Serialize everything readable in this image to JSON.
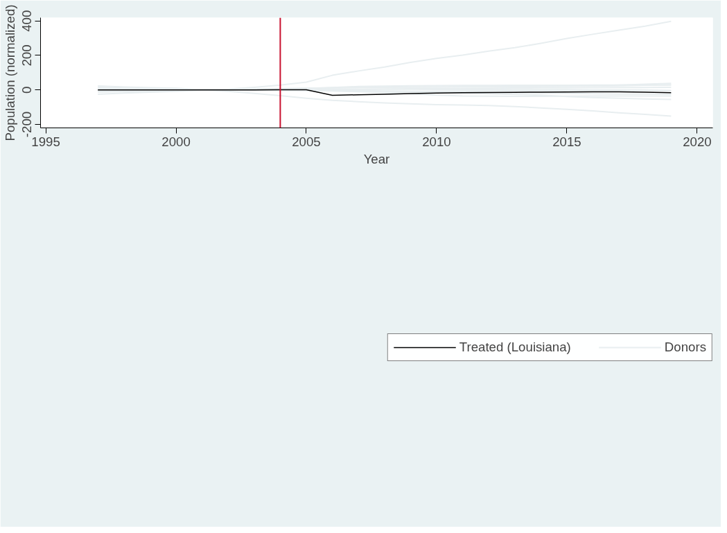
{
  "chart_data": {
    "type": "line",
    "xlabel": "Year",
    "ylabel": "Population (normalized)",
    "x": [
      1997,
      1998,
      1999,
      2000,
      2001,
      2002,
      2003,
      2004,
      2005,
      2006,
      2007,
      2008,
      2009,
      2010,
      2011,
      2012,
      2013,
      2014,
      2015,
      2016,
      2017,
      2018,
      2019
    ],
    "series": [
      {
        "name": "Treated (Louisiana)",
        "color": "#000000",
        "values": [
          0,
          0,
          0,
          0,
          0,
          0,
          0,
          1,
          1,
          -31,
          -28,
          -25,
          -21,
          -18,
          -16,
          -15,
          -14,
          -13,
          -12,
          -11,
          -11,
          -13,
          -16
        ]
      },
      {
        "name": "Donors",
        "color": "#e8eef0",
        "values": [
          5,
          4,
          3,
          1,
          0,
          5,
          15,
          28,
          45,
          85,
          110,
          133,
          160,
          183,
          202,
          225,
          245,
          270,
          298,
          323,
          347,
          370,
          398
        ]
      },
      {
        "color": "#e8eef0",
        "values": [
          -5,
          -4,
          -3,
          -2,
          0,
          -8,
          -20,
          -33,
          -48,
          -60,
          -68,
          -75,
          -80,
          -85,
          -87,
          -90,
          -96,
          -104,
          -112,
          -122,
          -133,
          -142,
          -152
        ]
      },
      {
        "color": "#e8eef0",
        "values": [
          23,
          17,
          13,
          10,
          2,
          3,
          6,
          8,
          10,
          12,
          14,
          15,
          16,
          17,
          18,
          19,
          20,
          21,
          22,
          24,
          28,
          33,
          38
        ]
      },
      {
        "color": "#e8eef0",
        "values": [
          -25,
          -18,
          -13,
          -8,
          -2,
          0,
          2,
          5,
          8,
          12,
          15,
          16,
          17,
          17,
          18,
          18,
          19,
          20,
          21,
          22,
          24,
          27,
          30
        ]
      },
      {
        "color": "#e8eef0",
        "values": [
          15,
          10,
          7,
          4,
          0,
          2,
          4,
          6,
          9,
          14,
          20,
          22,
          24,
          25,
          26,
          26,
          27,
          27,
          27,
          28,
          28,
          28,
          28
        ]
      },
      {
        "color": "#e8eef0",
        "values": [
          -12,
          -9,
          -7,
          -5,
          -1,
          0,
          1,
          2,
          3,
          4,
          5,
          6,
          7,
          8,
          9,
          10,
          11,
          12,
          12,
          13,
          14,
          14,
          15
        ]
      },
      {
        "color": "#e8eef0",
        "values": [
          8,
          6,
          4,
          2,
          0,
          -1,
          -2,
          -3,
          -4,
          -6,
          -7,
          -8,
          -8,
          -7,
          -6,
          -6,
          -5,
          -5,
          -4,
          -4,
          -4,
          -3,
          -3
        ]
      },
      {
        "color": "#e8eef0",
        "values": [
          -5,
          -4,
          -3,
          -2,
          0,
          0,
          0,
          0,
          0,
          -2,
          -4,
          -6,
          -8,
          -10,
          -12,
          -14,
          -16,
          -18,
          -20,
          -22,
          -24,
          -24,
          -25
        ]
      },
      {
        "color": "#e8eef0",
        "values": [
          0,
          0,
          0,
          0,
          0,
          0,
          0,
          0,
          -1,
          -5,
          -10,
          -15,
          -22,
          -30,
          -35,
          -36,
          -37,
          -37,
          -36,
          -35,
          -35,
          -35,
          -35
        ]
      },
      {
        "color": "#e8eef0",
        "values": [
          3,
          2,
          1,
          1,
          0,
          0,
          0,
          0,
          -1,
          -3,
          -6,
          -9,
          -12,
          -15,
          -18,
          -22,
          -26,
          -30,
          -38,
          -44,
          -48,
          -52,
          -55
        ]
      },
      {
        "color": "#e8eef0",
        "values": [
          -3,
          -2,
          -1,
          0,
          0,
          0,
          1,
          1,
          2,
          3,
          3,
          4,
          4,
          3,
          3,
          3,
          2,
          2,
          2,
          1,
          1,
          0,
          -5
        ]
      }
    ],
    "xlim": [
      1994.8,
      2020.6
    ],
    "ylim": [
      -220,
      419
    ],
    "xticks": [
      1995,
      2000,
      2005,
      2010,
      2015,
      2020
    ],
    "yticks": [
      -200,
      0,
      200,
      400
    ],
    "ref_lines": [
      {
        "axis": "x",
        "value": 2004,
        "color": "#c8102e"
      }
    ],
    "grid": false,
    "legend": "bottom"
  }
}
